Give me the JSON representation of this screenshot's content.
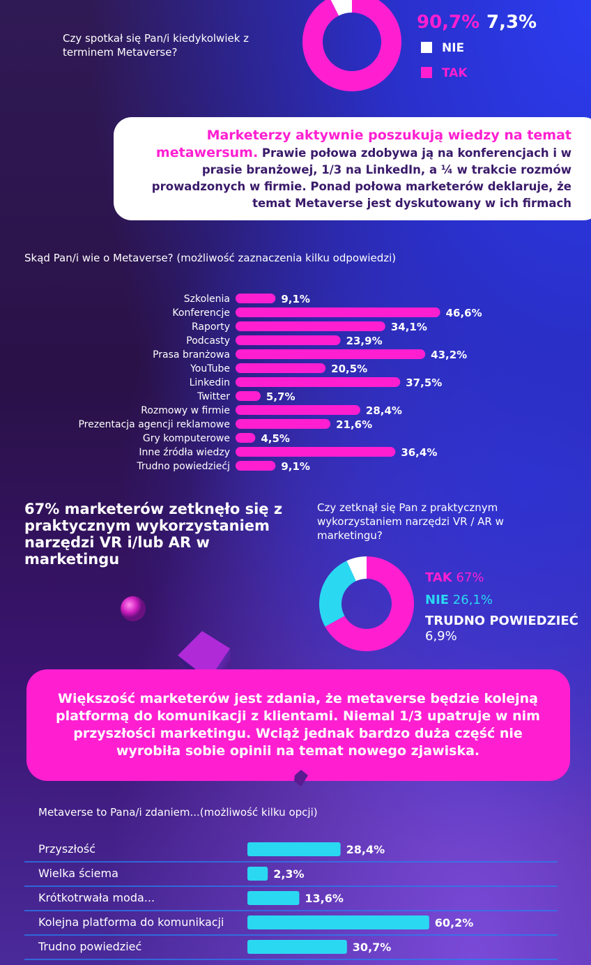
{
  "chart_data": [
    {
      "type": "donut",
      "title": "Czy spotkał się Pan/i kiedykolwiek z terminem Metaverse?",
      "categories": [
        "NIE",
        "TAK"
      ],
      "values": [
        7.3,
        90.7
      ],
      "value_labels": [
        "7,3%",
        "90,7%"
      ],
      "colors": [
        "#ffffff",
        "#ff1fd1"
      ]
    },
    {
      "type": "hbar",
      "title": "Skąd Pan/i wie o Metaverse? (możliwość zaznaczenia kilku odpowiedzi)",
      "categories": [
        "Szkolenia",
        "Konferencje",
        "Raporty",
        "Podcasty",
        "Prasa branżowa",
        "YouTube",
        "Linkedin",
        "Twitter",
        "Rozmowy w firmie",
        "Prezentacja agencji reklamowe",
        "Gry komputerowe",
        "Inne źródła wiedzy",
        "Trudno powiedziećj"
      ],
      "values": [
        9.1,
        46.6,
        34.1,
        23.9,
        43.2,
        20.5,
        37.5,
        5.7,
        28.4,
        21.6,
        4.5,
        36.4,
        9.1
      ],
      "value_labels": [
        "9,1%",
        "46,6%",
        "34,1%",
        "23,9%",
        "43,2%",
        "20,5%",
        "37,5%",
        "5,7%",
        "28,4%",
        "21,6%",
        "4,5%",
        "36,4%",
        "9,1%"
      ],
      "color": "#ff1fd1"
    },
    {
      "type": "donut",
      "title": "Czy zetknął się Pan z praktycznym wykorzystaniem narzędzi VR / AR w marketingu?",
      "categories": [
        "TAK",
        "NIE",
        "TRUDNO POWIEDZIEĆ"
      ],
      "values": [
        67,
        26.1,
        6.9
      ],
      "value_labels": [
        "67%",
        "26,1%",
        "6,9%"
      ],
      "colors": [
        "#ff1fd1",
        "#2ad8f2",
        "#ffffff"
      ]
    },
    {
      "type": "hbar",
      "title": "Metaverse to Pana/i zdaniem...(możliwość kilku opcji)",
      "categories": [
        "Przyszłość",
        "Wielka ściema",
        "Krótkotrwała moda...",
        "Kolejna platforma do komunikacji",
        "Trudno powiedzieć"
      ],
      "values": [
        28.4,
        2.3,
        13.6,
        60.2,
        30.7
      ],
      "value_labels": [
        "28,4%",
        "2,3%",
        "13,6%",
        "60,2%",
        "30,7%"
      ],
      "color": "#2ad8f2"
    }
  ],
  "callouts": [
    {
      "highlight": "Marketerzy aktywnie poszukują wiedzy na temat metawersum.",
      "text": "Prawie połowa zdobywa ją na konferencjach i w prasie branżowej, 1/3 na LinkedIn, a ¼ w trakcie rozmów prowadzonych w firmie. Ponad połowa marketerów deklaruje, że temat Metaverse jest dyskutowany w ich firmach"
    },
    {
      "text": "Większość marketerów jest zdania, że metaverse będzie kolejną platformą do komunikacji z klientami. Niemal 1/3 upatruje w nim przyszłości marketingu. Wciąż jednak bardzo duża część nie wyrobiła sobie opinii na temat nowego zjawiska."
    }
  ],
  "headline": "67% marketerów zetknęło się z praktycznym wykorzystaniem narzędzi VR i/lub AR w marketingu"
}
